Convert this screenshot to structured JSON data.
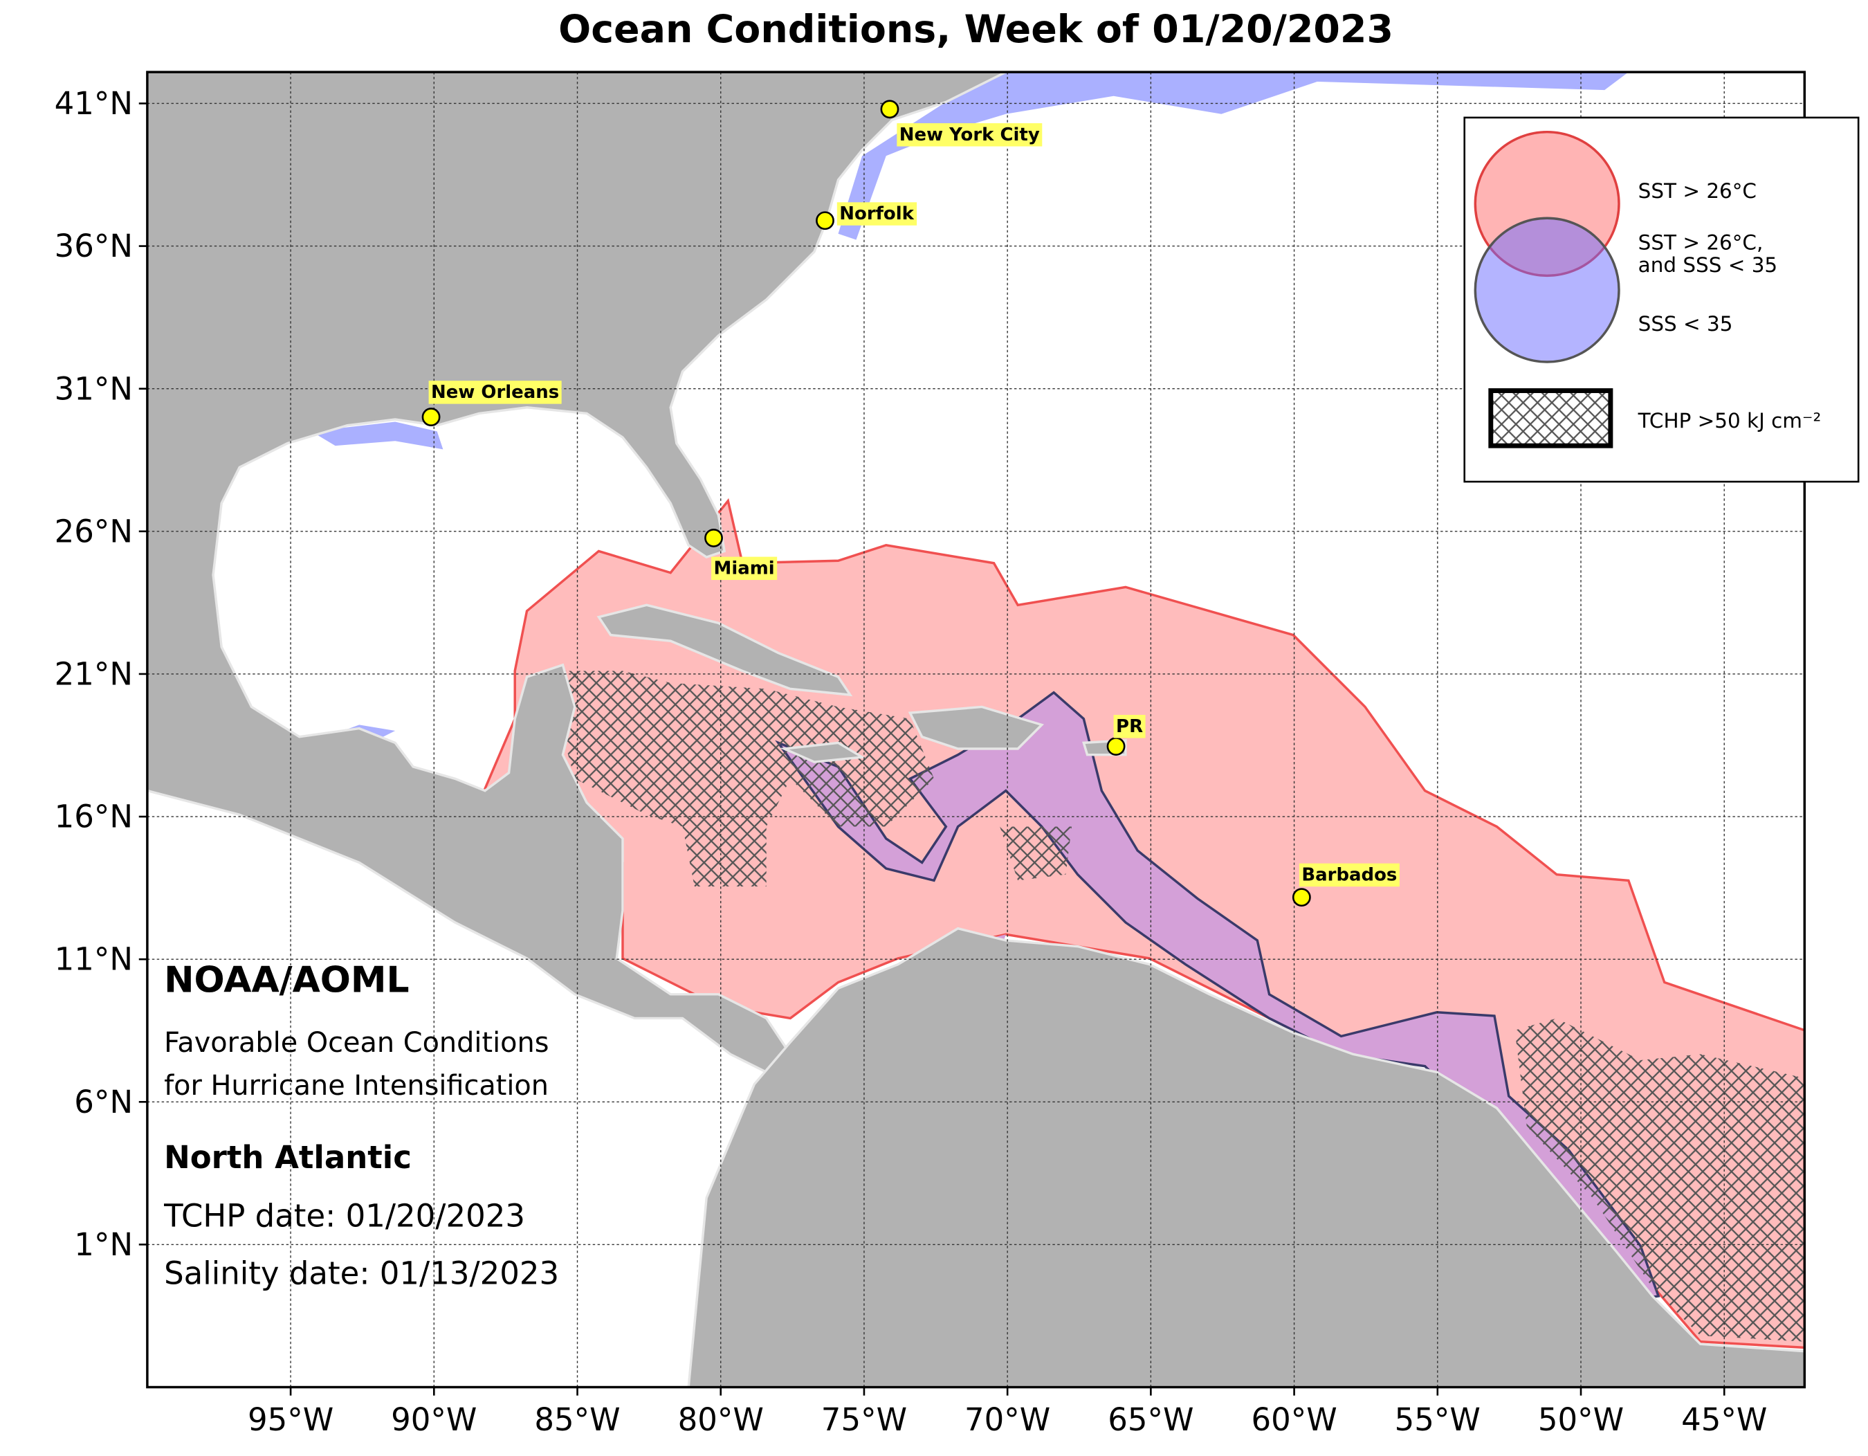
{
  "chart_data": {
    "type": "map",
    "title": "Ocean Conditions, Week of 01/20/2023",
    "xlim": [
      -100,
      -42.2
    ],
    "ylim": [
      -4,
      42.1
    ],
    "grid": true,
    "xticks": [
      {
        "value": -95,
        "label": "95°W"
      },
      {
        "value": -90,
        "label": "90°W"
      },
      {
        "value": -85,
        "label": "85°W"
      },
      {
        "value": -80,
        "label": "80°W"
      },
      {
        "value": -75,
        "label": "75°W"
      },
      {
        "value": -70,
        "label": "70°W"
      },
      {
        "value": -65,
        "label": "65°W"
      },
      {
        "value": -60,
        "label": "60°W"
      },
      {
        "value": -55,
        "label": "55°W"
      },
      {
        "value": -50,
        "label": "50°W"
      },
      {
        "value": -45,
        "label": "45°W"
      }
    ],
    "yticks": [
      {
        "value": 41,
        "label": "41°N"
      },
      {
        "value": 36,
        "label": "36°N"
      },
      {
        "value": 31,
        "label": "31°N"
      },
      {
        "value": 26,
        "label": "26°N"
      },
      {
        "value": 21,
        "label": "21°N"
      },
      {
        "value": 16,
        "label": "16°N"
      },
      {
        "value": 11,
        "label": "11°N"
      },
      {
        "value": 6,
        "label": "6°N"
      },
      {
        "value": 1,
        "label": "1°N"
      }
    ],
    "cities": [
      "New York City",
      "Norfolk",
      "New Orleans",
      "Miami",
      "PR",
      "Barbados"
    ],
    "legend": {
      "sst": "SST > 26°C",
      "both": [
        "SST > 26°C,",
        "and SSS < 35"
      ],
      "sss": "SSS < 35",
      "tchp": "TCHP >50 kJ cm⁻²"
    },
    "info": {
      "org": "NOAA/AOML",
      "description": [
        "Favorable Ocean Conditions",
        "for Hurricane Intensification"
      ],
      "region": "North Atlantic",
      "tchp_date": "TCHP date: 01/20/2023",
      "salinity_date": "Salinity date: 01/13/2023"
    }
  }
}
